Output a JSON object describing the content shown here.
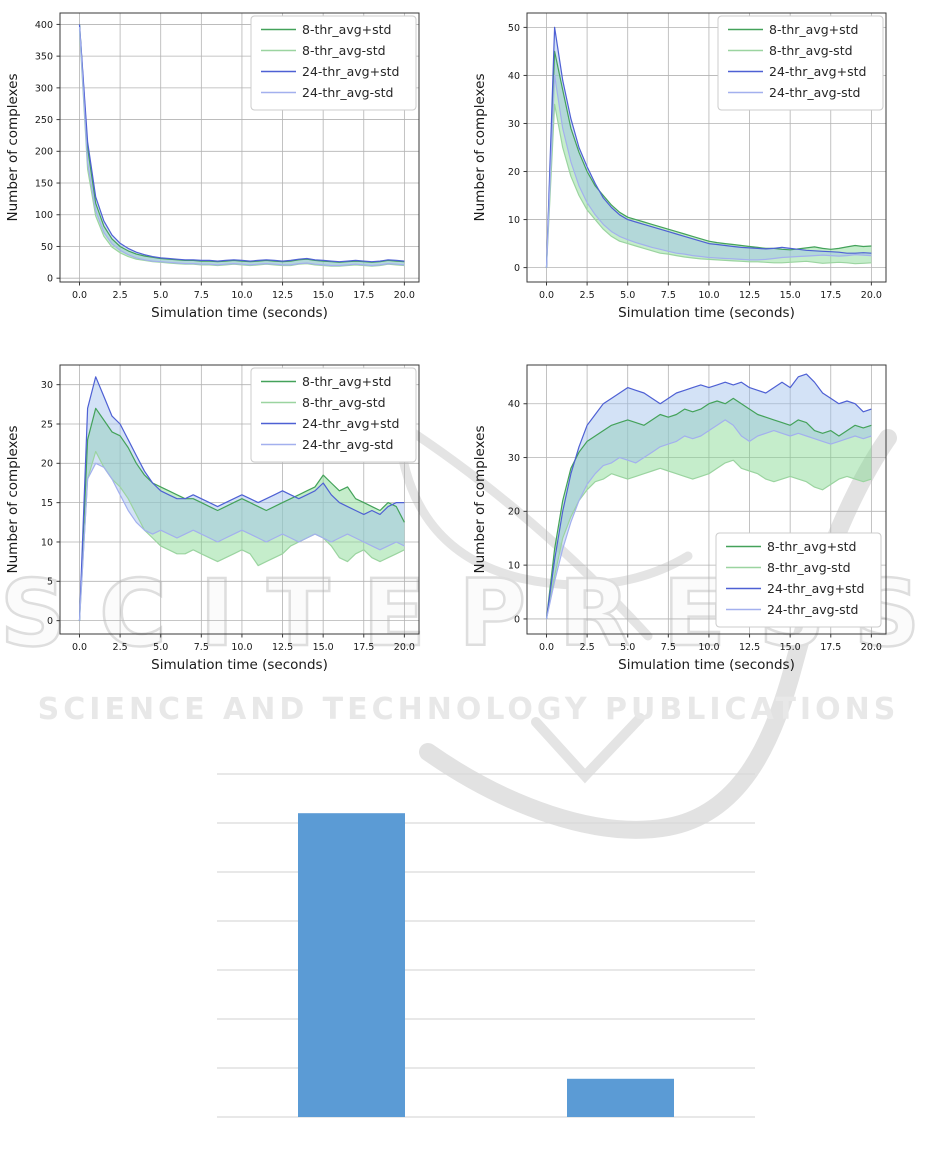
{
  "watermark": {
    "title": "SCITEPRESS",
    "subtitle": "SCIENCE AND TECHNOLOGY PUBLICATIONS",
    "color": "#e3e3e3"
  },
  "colors": {
    "green_plus": "#44a25a",
    "green_minus": "#9bd4a0",
    "blue_plus": "#4e60d4",
    "blue_minus": "#a3b0ee",
    "green_fill": "rgba(126,214,140,0.45)",
    "blue_fill": "rgba(158,190,236,0.45)",
    "grid_line": "#b3b3b3",
    "spine": "#3a3a3a",
    "tick_text": "#1a1a1a",
    "legend_border": "#cccccc",
    "bar": "#5b9bd5",
    "bar_grid": "#d9d9d9"
  },
  "legend_labels": [
    "8-thr_avg+std",
    "8-thr_avg-std",
    "24-thr_avg+std",
    "24-thr_avg-std"
  ],
  "chart_data": [
    {
      "type": "line",
      "name": "top-left",
      "xlabel": "Simulation time (seconds)",
      "ylabel": "Number of complexes",
      "xlim": [
        -1.2,
        20.9
      ],
      "ylim": [
        -6,
        418
      ],
      "xticks": [
        0,
        2.5,
        5,
        7.5,
        10,
        12.5,
        15,
        17.5,
        20
      ],
      "xtick_labels": [
        "0.0",
        "2.5",
        "5.0",
        "7.5",
        "10.0",
        "12.5",
        "15.0",
        "17.5",
        "20.0"
      ],
      "yticks": [
        0,
        50,
        100,
        150,
        200,
        250,
        300,
        350,
        400
      ],
      "grid": true,
      "legend_pos": "top-right",
      "x": [
        0,
        0.5,
        1,
        1.5,
        2,
        2.5,
        3,
        3.5,
        4,
        4.5,
        5,
        5.5,
        6,
        6.5,
        7,
        7.5,
        8,
        8.5,
        9,
        9.5,
        10,
        10.5,
        11,
        11.5,
        12,
        12.5,
        13,
        13.5,
        14,
        14.5,
        15,
        15.5,
        16,
        16.5,
        17,
        17.5,
        18,
        18.5,
        19,
        19.5,
        20
      ],
      "series": [
        {
          "name": "8-thr_avg+std",
          "color_key": "green_plus",
          "values": [
            400,
            205,
            118,
            82,
            62,
            50,
            43,
            38,
            35,
            33,
            31,
            30,
            29,
            28,
            28,
            27,
            27,
            26,
            27,
            28,
            27,
            26,
            27,
            28,
            27,
            26,
            27,
            29,
            30,
            28,
            27,
            26,
            25,
            26,
            27,
            26,
            25,
            26,
            28,
            27,
            26
          ]
        },
        {
          "name": "8-thr_avg-std",
          "color_key": "green_minus",
          "values": [
            392,
            172,
            98,
            66,
            49,
            40,
            34,
            30,
            28,
            26,
            25,
            24,
            23,
            22,
            22,
            21,
            21,
            20,
            21,
            22,
            21,
            20,
            21,
            22,
            21,
            20,
            20,
            22,
            23,
            21,
            20,
            19,
            19,
            20,
            21,
            20,
            19,
            20,
            22,
            21,
            20
          ]
        },
        {
          "name": "24-thr_avg+std",
          "color_key": "blue_plus",
          "values": [
            400,
            215,
            128,
            90,
            68,
            55,
            47,
            41,
            37,
            34,
            32,
            31,
            30,
            29,
            29,
            28,
            28,
            27,
            28,
            29,
            28,
            27,
            28,
            29,
            28,
            27,
            28,
            30,
            31,
            29,
            28,
            27,
            26,
            27,
            28,
            27,
            26,
            27,
            29,
            28,
            27
          ]
        },
        {
          "name": "24-thr_avg-std",
          "color_key": "blue_minus",
          "values": [
            396,
            182,
            106,
            72,
            54,
            44,
            37,
            32,
            29,
            27,
            26,
            25,
            24,
            23,
            23,
            22,
            22,
            21,
            22,
            23,
            22,
            21,
            22,
            23,
            22,
            21,
            21,
            23,
            24,
            22,
            21,
            20,
            20,
            21,
            22,
            21,
            20,
            21,
            23,
            22,
            21
          ]
        }
      ],
      "fills": [
        {
          "upper": 0,
          "lower": 1,
          "color_key": "green_fill"
        },
        {
          "upper": 2,
          "lower": 3,
          "color_key": "blue_fill"
        }
      ]
    },
    {
      "type": "line",
      "name": "top-right",
      "xlabel": "Simulation time (seconds)",
      "ylabel": "Number of complexes",
      "xlim": [
        -1.2,
        20.9
      ],
      "ylim": [
        -3,
        53
      ],
      "xticks": [
        0,
        2.5,
        5,
        7.5,
        10,
        12.5,
        15,
        17.5,
        20
      ],
      "xtick_labels": [
        "0.0",
        "2.5",
        "5.0",
        "7.5",
        "10.0",
        "12.5",
        "15.0",
        "17.5",
        "20.0"
      ],
      "yticks": [
        0,
        10,
        20,
        30,
        40,
        50
      ],
      "grid": true,
      "legend_pos": "top-right",
      "x": [
        0,
        0.5,
        1,
        1.5,
        2,
        2.5,
        3,
        3.5,
        4,
        4.5,
        5,
        5.5,
        6,
        6.5,
        7,
        7.5,
        8,
        8.5,
        9,
        9.5,
        10,
        10.5,
        11,
        11.5,
        12,
        12.5,
        13,
        13.5,
        14,
        14.5,
        15,
        15.5,
        16,
        16.5,
        17,
        17.5,
        18,
        18.5,
        19,
        19.5,
        20
      ],
      "series": [
        {
          "name": "8-thr_avg+std",
          "color_key": "green_plus",
          "values": [
            0,
            45,
            37,
            29,
            24,
            20,
            17,
            15,
            13,
            11.5,
            10.5,
            10,
            9.5,
            9,
            8.5,
            8,
            7.5,
            7,
            6.5,
            6,
            5.5,
            5.2,
            5,
            4.8,
            4.6,
            4.4,
            4.2,
            4,
            4,
            3.8,
            3.7,
            3.9,
            4.1,
            4.3,
            4,
            3.8,
            4,
            4.3,
            4.6,
            4.4,
            4.5
          ]
        },
        {
          "name": "8-thr_avg-std",
          "color_key": "green_minus",
          "values": [
            0,
            34,
            25,
            19,
            15,
            12,
            10,
            8,
            6.5,
            5.5,
            5,
            4.5,
            4,
            3.5,
            3,
            2.8,
            2.5,
            2.2,
            2,
            1.8,
            1.7,
            1.6,
            1.5,
            1.4,
            1.3,
            1.2,
            1.2,
            1.1,
            1,
            1,
            1.1,
            1.2,
            1.3,
            1.1,
            0.9,
            1,
            1.1,
            1,
            0.8,
            0.9,
            1
          ]
        },
        {
          "name": "24-thr_avg+std",
          "color_key": "blue_plus",
          "values": [
            0,
            50,
            39,
            31,
            25,
            21,
            17.5,
            14.5,
            12.5,
            11,
            10,
            9.5,
            9,
            8.5,
            8,
            7.5,
            7,
            6.5,
            6,
            5.5,
            5,
            4.8,
            4.6,
            4.4,
            4.2,
            4.1,
            4,
            3.9,
            4,
            4.2,
            4,
            3.8,
            3.6,
            3.5,
            3.4,
            3.3,
            3.2,
            3,
            3,
            3.1,
            3
          ]
        },
        {
          "name": "24-thr_avg-std",
          "color_key": "blue_minus",
          "values": [
            0,
            40,
            29,
            22,
            17,
            13.5,
            11,
            9,
            7.5,
            6.5,
            5.8,
            5.2,
            4.7,
            4.2,
            3.8,
            3.4,
            3,
            2.8,
            2.5,
            2.3,
            2.1,
            2,
            1.9,
            1.8,
            1.7,
            1.6,
            1.6,
            1.7,
            1.9,
            2.1,
            2.2,
            2.3,
            2.4,
            2.5,
            2.6,
            2.5,
            2.4,
            2.5,
            2.7,
            2.6,
            2.5
          ]
        }
      ],
      "fills": [
        {
          "upper": 0,
          "lower": 1,
          "color_key": "green_fill"
        },
        {
          "upper": 2,
          "lower": 3,
          "color_key": "blue_fill"
        }
      ]
    },
    {
      "type": "line",
      "name": "middle-left",
      "xlabel": "Simulation time (seconds)",
      "ylabel": "Number of complexes",
      "xlim": [
        -1.2,
        20.9
      ],
      "ylim": [
        -1.7,
        32.5
      ],
      "xticks": [
        0,
        2.5,
        5,
        7.5,
        10,
        12.5,
        15,
        17.5,
        20
      ],
      "xtick_labels": [
        "0.0",
        "2.5",
        "5.0",
        "7.5",
        "10.0",
        "12.5",
        "15.0",
        "17.5",
        "20.0"
      ],
      "yticks": [
        0,
        5,
        10,
        15,
        20,
        25,
        30
      ],
      "grid": true,
      "legend_pos": "top-right",
      "x": [
        0,
        0.5,
        1,
        1.5,
        2,
        2.5,
        3,
        3.5,
        4,
        4.5,
        5,
        5.5,
        6,
        6.5,
        7,
        7.5,
        8,
        8.5,
        9,
        9.5,
        10,
        10.5,
        11,
        11.5,
        12,
        12.5,
        13,
        13.5,
        14,
        14.5,
        15,
        15.5,
        16,
        16.5,
        17,
        17.5,
        18,
        18.5,
        19,
        19.5,
        20
      ],
      "series": [
        {
          "name": "8-thr_avg+std",
          "color_key": "green_plus",
          "values": [
            0,
            23,
            27,
            25.5,
            24,
            23.5,
            22,
            20,
            18.5,
            17.5,
            17,
            16.5,
            16,
            15.5,
            15.5,
            15,
            14.5,
            14,
            14.5,
            15,
            15.5,
            15,
            14.5,
            14,
            14.5,
            15,
            15.5,
            16,
            16.5,
            17,
            18.5,
            17.5,
            16.5,
            17,
            15.5,
            15,
            14.5,
            14,
            15,
            14.5,
            12.5
          ]
        },
        {
          "name": "8-thr_avg-std",
          "color_key": "green_minus",
          "values": [
            0,
            18,
            21.5,
            19.5,
            18,
            17,
            15.5,
            13.5,
            11.5,
            10.5,
            9.5,
            9,
            8.5,
            8.5,
            9,
            8.5,
            8,
            7.5,
            8,
            8.5,
            9,
            8.5,
            7,
            7.5,
            8,
            8.5,
            9.5,
            10,
            10.5,
            11,
            10.5,
            9.5,
            8,
            7.5,
            8.5,
            9,
            8,
            7.5,
            8,
            8.5,
            9
          ]
        },
        {
          "name": "24-thr_avg+std",
          "color_key": "blue_plus",
          "values": [
            0,
            27,
            31,
            28.5,
            26,
            25,
            23,
            21,
            19,
            17.5,
            16.5,
            16,
            15.5,
            15.5,
            16,
            15.5,
            15,
            14.5,
            15,
            15.5,
            16,
            15.5,
            15,
            15.5,
            16,
            16.5,
            16,
            15.5,
            16,
            16.5,
            17.5,
            16,
            15,
            14.5,
            14,
            13.5,
            14,
            13.5,
            14.5,
            15,
            15
          ]
        },
        {
          "name": "24-thr_avg-std",
          "color_key": "blue_minus",
          "values": [
            0,
            18,
            20,
            19.5,
            18,
            16,
            14,
            12.5,
            11.5,
            11,
            11.5,
            11,
            10.5,
            11,
            11.5,
            11,
            10.5,
            10,
            10.5,
            11,
            11.5,
            11,
            10.5,
            10,
            10.5,
            11,
            10.5,
            10,
            10.5,
            11,
            10.5,
            10,
            10.5,
            11,
            10.5,
            10,
            9.5,
            9,
            9.5,
            10,
            9.5
          ]
        }
      ],
      "fills": [
        {
          "upper": 0,
          "lower": 1,
          "color_key": "green_fill"
        },
        {
          "upper": 2,
          "lower": 3,
          "color_key": "blue_fill"
        }
      ]
    },
    {
      "type": "line",
      "name": "middle-right",
      "xlabel": "Simulation time (seconds)",
      "ylabel": "Number of complexes",
      "xlim": [
        -1.2,
        20.9
      ],
      "ylim": [
        -2.8,
        47.2
      ],
      "xticks": [
        0,
        2.5,
        5,
        7.5,
        10,
        12.5,
        15,
        17.5,
        20
      ],
      "xtick_labels": [
        "0.0",
        "2.5",
        "5.0",
        "7.5",
        "10.0",
        "12.5",
        "15.0",
        "17.5",
        "20.0"
      ],
      "yticks": [
        0,
        10,
        20,
        30,
        40
      ],
      "grid": true,
      "legend_pos": "bottom-right",
      "x": [
        0,
        0.5,
        1,
        1.5,
        2,
        2.5,
        3,
        3.5,
        4,
        4.5,
        5,
        5.5,
        6,
        6.5,
        7,
        7.5,
        8,
        8.5,
        9,
        9.5,
        10,
        10.5,
        11,
        11.5,
        12,
        12.5,
        13,
        13.5,
        14,
        14.5,
        15,
        15.5,
        16,
        16.5,
        17,
        17.5,
        18,
        18.5,
        19,
        19.5,
        20
      ],
      "series": [
        {
          "name": "8-thr_avg+std",
          "color_key": "green_plus",
          "values": [
            0,
            13,
            22,
            28,
            31,
            33,
            34,
            35,
            36,
            36.5,
            37,
            36.5,
            36,
            37,
            38,
            37.5,
            38,
            39,
            38.5,
            39,
            40,
            40.5,
            40,
            41,
            40,
            39,
            38,
            37.5,
            37,
            36.5,
            36,
            37,
            36.5,
            35,
            34.5,
            35,
            34,
            35,
            36,
            35.5,
            36
          ]
        },
        {
          "name": "8-thr_avg-std",
          "color_key": "green_minus",
          "values": [
            0,
            8,
            15,
            19,
            22,
            24,
            25.5,
            26,
            27,
            26.5,
            26,
            26.5,
            27,
            27.5,
            28,
            27.5,
            27,
            26.5,
            26,
            26.5,
            27,
            28,
            29,
            29.5,
            28,
            27.5,
            27,
            26,
            25.5,
            26,
            26.5,
            26,
            25.5,
            24.5,
            24,
            25,
            26,
            26.5,
            26,
            25.5,
            26
          ]
        },
        {
          "name": "24-thr_avg+std",
          "color_key": "blue_plus",
          "values": [
            0,
            11,
            20,
            27,
            32,
            36,
            38,
            40,
            41,
            42,
            43,
            42.5,
            42,
            41,
            40,
            41,
            42,
            42.5,
            43,
            43.5,
            43,
            43.5,
            44,
            43.5,
            44,
            43,
            42.5,
            42,
            43,
            44,
            43,
            45,
            45.5,
            44,
            42,
            41,
            40,
            40.5,
            40,
            38.5,
            39
          ]
        },
        {
          "name": "24-thr_avg-std",
          "color_key": "blue_minus",
          "values": [
            0,
            7,
            13,
            18,
            22,
            25,
            27,
            28.5,
            29,
            30,
            29.5,
            29,
            30,
            31,
            32,
            32.5,
            33,
            34,
            33.5,
            34,
            35,
            36,
            37,
            36,
            34,
            33,
            34,
            34.5,
            35,
            34.5,
            34,
            34.5,
            34,
            33.5,
            33,
            32.5,
            33,
            33.5,
            34,
            33.5,
            34
          ]
        }
      ],
      "fills": [
        {
          "upper": 0,
          "lower": 1,
          "color_key": "green_fill"
        },
        {
          "upper": 2,
          "lower": 3,
          "color_key": "blue_fill"
        }
      ]
    },
    {
      "type": "bar",
      "name": "bottom-bar",
      "categories": [
        "",
        ""
      ],
      "values": [
        6.2,
        0.78
      ],
      "value_units": "gridline-intervals (no axis labels visible)",
      "ylim": [
        0,
        7
      ],
      "gridline_count": 8,
      "title": "",
      "xlabel": "",
      "ylabel": "",
      "legend": "none"
    }
  ]
}
